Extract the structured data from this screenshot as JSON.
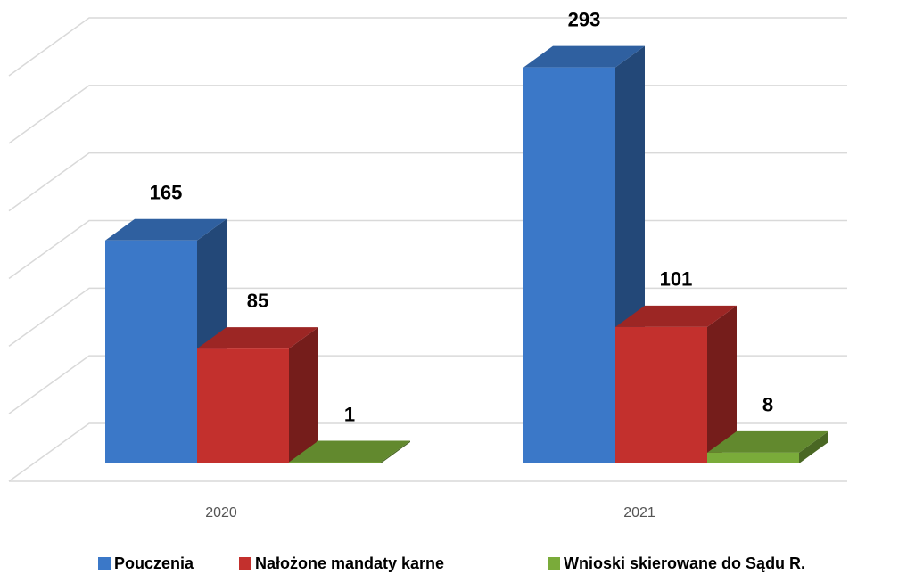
{
  "chart_data": {
    "type": "bar3d",
    "categories": [
      "2020",
      "2021"
    ],
    "series": [
      {
        "name": "Pouczenia",
        "color": "#3b78c8",
        "values": [
          165,
          293
        ]
      },
      {
        "name": "Nałożone mandaty karne",
        "color": "#c3302d",
        "values": [
          85,
          101
        ]
      },
      {
        "name": "Wnioski skierowane do Sądu R.",
        "color": "#7aab3a",
        "values": [
          1,
          8
        ]
      }
    ],
    "ylim": [
      0,
      300
    ],
    "yticks": [
      0,
      50,
      100,
      150,
      200,
      250,
      300
    ],
    "grid": true,
    "legend": "bottom"
  }
}
